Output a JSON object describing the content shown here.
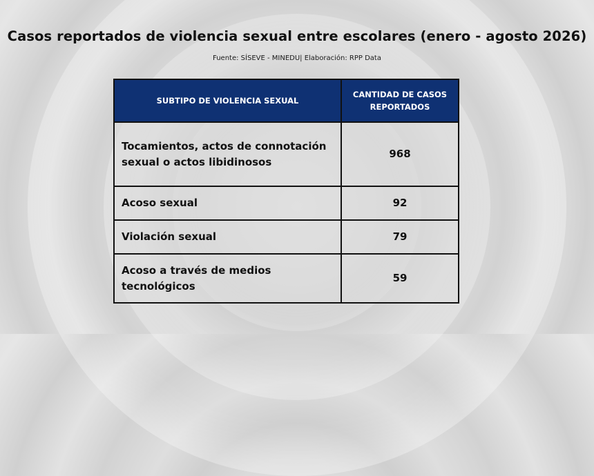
{
  "title": "Casos reportados de violencia sexual entre escolares (enero - agosto 2026)",
  "subtitle": "Fuente: SÍSEVE - MINEDU| Elaboración: RPP Data",
  "colors": {
    "header_background": "#0f3173",
    "header_text": "#ffffff",
    "border": "#111111"
  },
  "chart_data": {
    "type": "table",
    "title": "Casos reportados de violencia sexual entre escolares (enero - agosto 2026)",
    "columns": [
      "SUBTIPO DE VIOLENCIA SEXUAL",
      "CANTIDAD DE CASOS REPORTADOS"
    ],
    "rows": [
      {
        "subtipo": "Tocamientos, actos de connotación sexual o actos libidinosos",
        "casos": "968"
      },
      {
        "subtipo": "Acoso sexual",
        "casos": "92"
      },
      {
        "subtipo": "Violación sexual",
        "casos": "79"
      },
      {
        "subtipo": "Acoso a través de medios tecnológicos",
        "casos": "59"
      }
    ]
  }
}
